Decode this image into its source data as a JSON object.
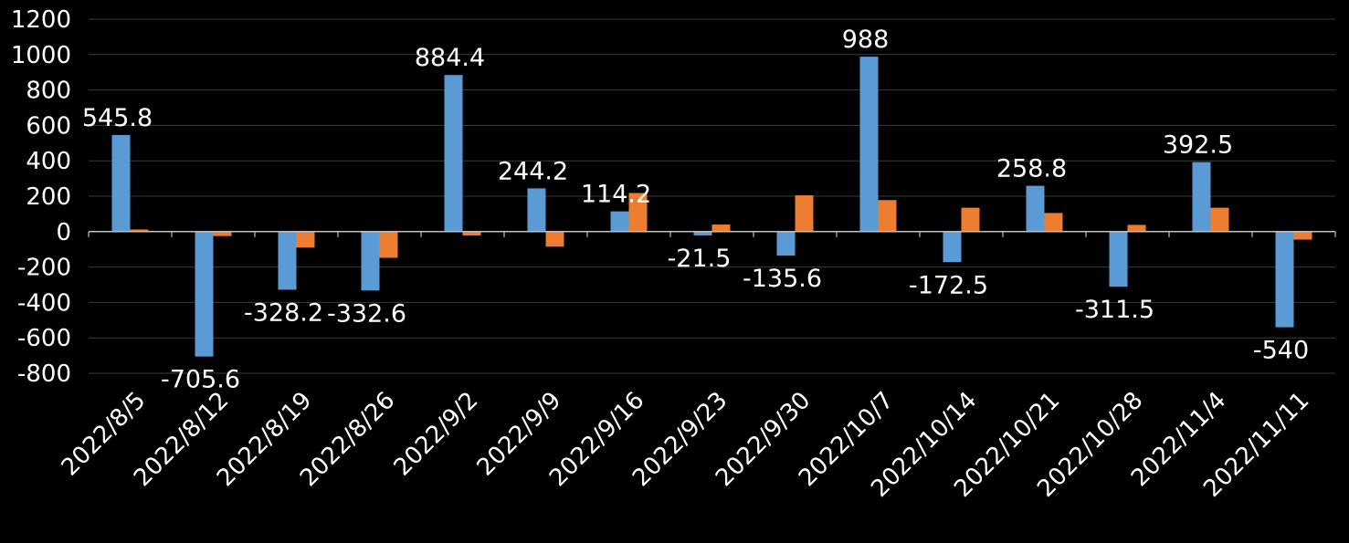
{
  "chart_data": {
    "type": "bar",
    "title": "",
    "xlabel": "",
    "ylabel": "",
    "categories": [
      "2022/8/5",
      "2022/8/12",
      "2022/8/19",
      "2022/8/26",
      "2022/9/2",
      "2022/9/9",
      "2022/9/16",
      "2022/9/23",
      "2022/9/30",
      "2022/10/7",
      "2022/10/14",
      "2022/10/21",
      "2022/10/28",
      "2022/11/4",
      "2022/11/11"
    ],
    "series": [
      {
        "color": "#5b9bd5",
        "values": [
          545.8,
          -705.6,
          -328.2,
          -332.6,
          884.4,
          244.2,
          114.2,
          -21.5,
          -135.6,
          988,
          -172.5,
          258.8,
          -311.5,
          392.5,
          -540
        ],
        "data_labels": [
          "545.8",
          "-705.6",
          "-328.2",
          "-332.6",
          "884.4",
          "244.2",
          "114.2",
          "-21.5",
          "-135.6",
          "988",
          "-172.5",
          "258.8",
          "-311.5",
          "392.5",
          "-540"
        ]
      },
      {
        "color": "#ed7d31",
        "values": [
          12,
          -25,
          -90,
          -148,
          -22,
          -85,
          218,
          40,
          205,
          178,
          135,
          105,
          38,
          135,
          -45
        ]
      }
    ],
    "yticks": [
      "1200",
      "1000",
      "800",
      "600",
      "400",
      "200",
      "0",
      "-200",
      "-400",
      "-600",
      "-800"
    ],
    "ylim": [
      -800,
      1200
    ],
    "grid": true,
    "legend": "none"
  },
  "colors": {
    "background": "#000000",
    "text": "#ffffff",
    "grid": "#3a3a3a",
    "axis": "#bfbfbf"
  }
}
